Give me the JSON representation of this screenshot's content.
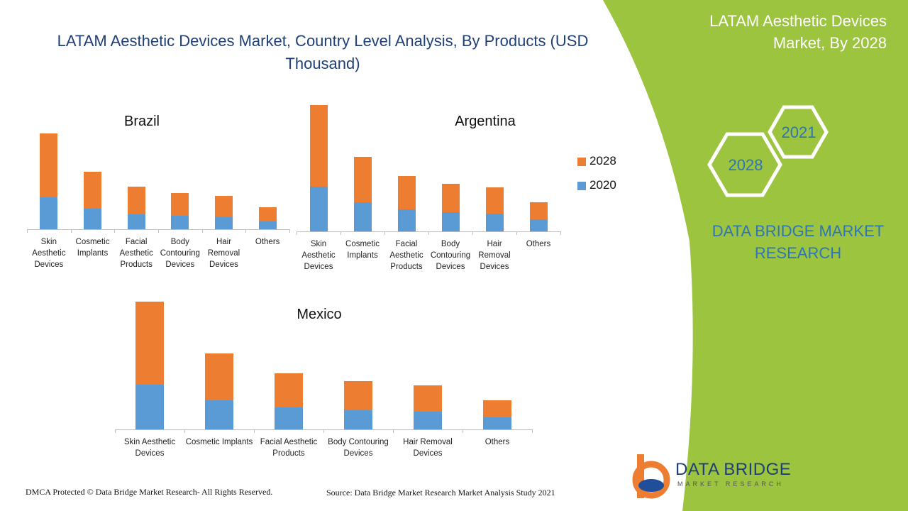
{
  "title": "LATAM Aesthetic Devices Market, Country Level Analysis, By Products (USD Thousand)",
  "side_panel": {
    "heading": "LATAM Aesthetic Devices Market, By 2028",
    "hex_years": [
      "2021",
      "2028"
    ],
    "brand": "DATA BRIDGE MARKET RESEARCH"
  },
  "legend": [
    {
      "name": "2028",
      "color": "#ed7d31"
    },
    {
      "name": "2020",
      "color": "#5b9bd5"
    }
  ],
  "chart_data": [
    {
      "type": "bar",
      "stacked": true,
      "title": "Brazil",
      "categories": [
        "Skin Aesthetic Devices",
        "Cosmetic Implants",
        "Facial Aesthetic Products",
        "Body Contouring Devices",
        "Hair Removal Devices",
        "Others"
      ],
      "series": [
        {
          "name": "2020",
          "values": [
            45,
            29,
            21,
            19,
            17,
            11
          ]
        },
        {
          "name": "2028",
          "values": [
            90,
            52,
            39,
            32,
            30,
            20
          ]
        }
      ]
    },
    {
      "type": "bar",
      "stacked": true,
      "title": "Argentina",
      "categories": [
        "Skin Aesthetic Devices",
        "Cosmetic Implants",
        "Facial Aesthetic Products",
        "Body Contouring Devices",
        "Hair Removal Devices",
        "Others"
      ],
      "series": [
        {
          "name": "2020",
          "values": [
            63,
            41,
            31,
            27,
            25,
            17
          ]
        },
        {
          "name": "2028",
          "values": [
            115,
            64,
            47,
            40,
            37,
            24
          ]
        }
      ]
    },
    {
      "type": "bar",
      "stacked": true,
      "title": "Mexico",
      "categories": [
        "Skin Aesthetic Devices",
        "Cosmetic Implants",
        "Facial Aesthetic Products",
        "Body Contouring Devices",
        "Hair Removal Devices",
        "Others"
      ],
      "series": [
        {
          "name": "2020",
          "values": [
            63,
            41,
            31,
            27,
            25,
            17
          ]
        },
        {
          "name": "2028",
          "values": [
            117,
            66,
            48,
            41,
            37,
            24
          ]
        }
      ]
    }
  ],
  "logo": {
    "name": "DATA BRIDGE",
    "tagline": "MARKET RESEARCH"
  },
  "footer": {
    "copyright": "DMCA Protected © Data Bridge Market Research- All Rights Reserved.",
    "source": "Source: Data Bridge Market Research Market Analysis Study 2021"
  }
}
